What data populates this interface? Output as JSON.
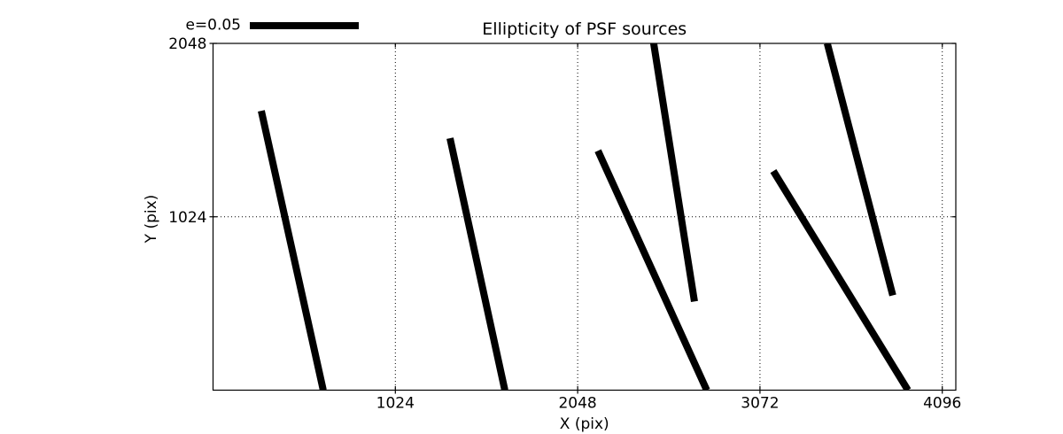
{
  "title": "Ellipticity of PSF sources",
  "legend": {
    "label": "e=0.05"
  },
  "axes": {
    "xlabel": "X (pix)",
    "ylabel": "Y (pix)",
    "x_tick_labels": [
      "1024",
      "2048",
      "3072",
      "4096"
    ],
    "y_tick_labels": [
      "1024",
      "2048"
    ]
  },
  "colors": {
    "stick": "#000000",
    "grid": "#000000",
    "frame": "#000000",
    "text": "#000000",
    "background": "#ffffff"
  },
  "chart_data": {
    "type": "line",
    "subtype": "ellipticity-whisker-segments",
    "title": "Ellipticity of PSF sources",
    "xlabel": "X (pix)",
    "ylabel": "Y (pix)",
    "xlim": [
      0,
      4172
    ],
    "ylim": [
      0,
      2048
    ],
    "xticks": [
      1024,
      2048,
      3072,
      4096
    ],
    "yticks": [
      1024,
      2048
    ],
    "grid": true,
    "grid_style": "dotted",
    "legend": {
      "label": "e=0.05",
      "position": "top-left-above-axes"
    },
    "series": [
      {
        "name": "psf-ellipticity-sticks",
        "color": "#000000",
        "stroke_width_px": 8,
        "segments": [
          {
            "x1": 271,
            "y1": 1650,
            "x2": 619,
            "y2": 0
          },
          {
            "x1": 1331,
            "y1": 1488,
            "x2": 1639,
            "y2": 0
          },
          {
            "x1": 2162,
            "y1": 1414,
            "x2": 2773,
            "y2": 0
          },
          {
            "x1": 2475,
            "y1": 2048,
            "x2": 2704,
            "y2": 524
          },
          {
            "x1": 3147,
            "y1": 1294,
            "x2": 3903,
            "y2": 0
          },
          {
            "x1": 3450,
            "y1": 2048,
            "x2": 3818,
            "y2": 560
          }
        ]
      }
    ]
  }
}
